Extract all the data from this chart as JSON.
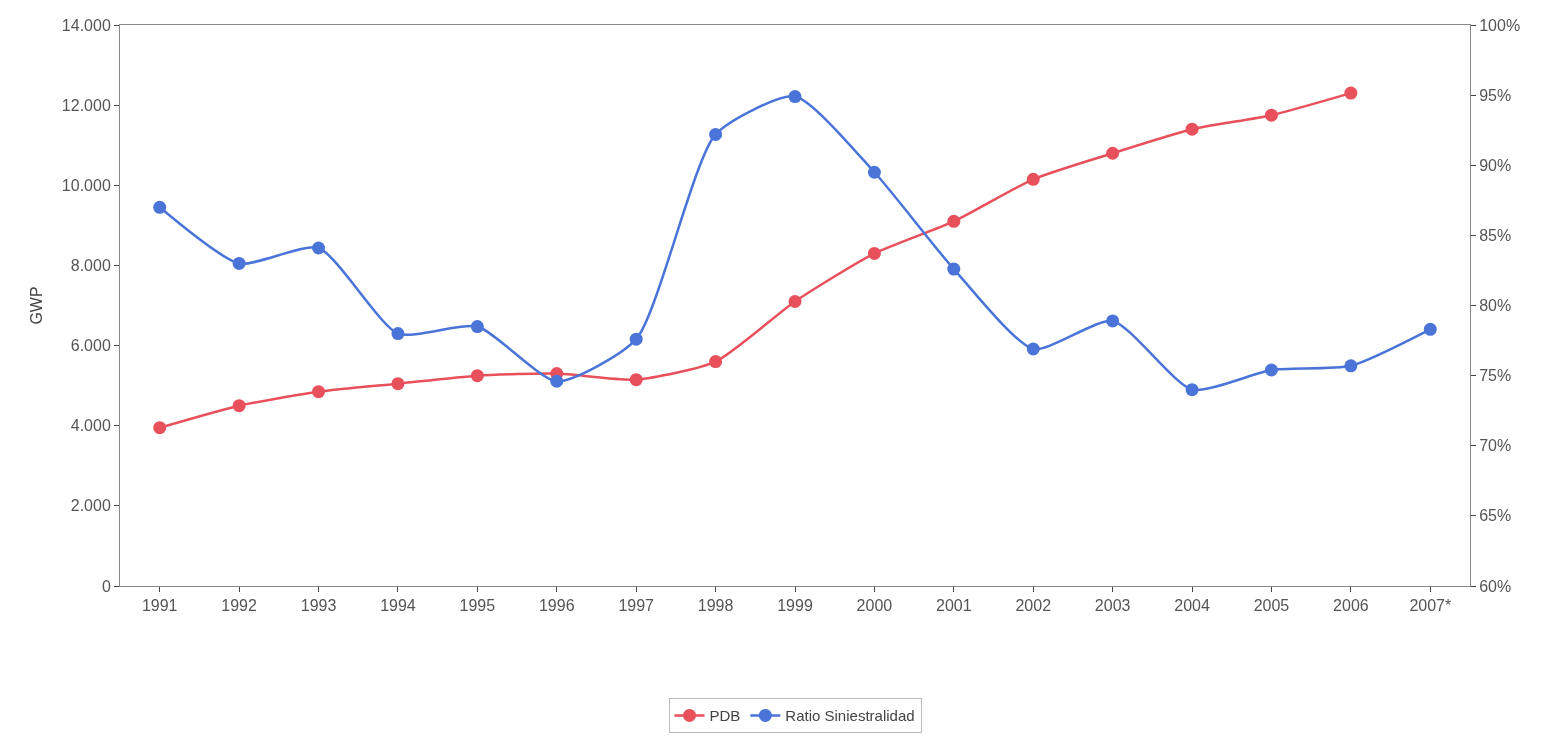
{
  "chart_data": {
    "type": "line",
    "ylabel": "GWP",
    "categories": [
      "1991",
      "1992",
      "1993",
      "1994",
      "1995",
      "1996",
      "1997",
      "1998",
      "1999",
      "2000",
      "2001",
      "2002",
      "2003",
      "2004",
      "2005",
      "2006",
      "2007*"
    ],
    "series": [
      {
        "name": "PDB",
        "color": "#e8505b",
        "values": [
          3950,
          4500,
          4850,
          5050,
          5250,
          5300,
          5150,
          5600,
          7100,
          8300,
          9100,
          10150,
          10800,
          11400,
          11750,
          12300,
          null
        ]
      },
      {
        "name": "Ratio Siniestralidad",
        "color": "#4a74d8",
        "axis": "y2",
        "values": [
          87,
          83,
          84.1,
          78,
          78.5,
          74.6,
          77.6,
          92.2,
          94.9,
          89.5,
          82.6,
          76.9,
          78.9,
          74,
          75.4,
          75.7,
          78.3
        ]
      }
    ],
    "ylim": [
      0,
      14000
    ],
    "yticks": [
      {
        "value": 0,
        "label": "0"
      },
      {
        "value": 2000,
        "label": "2.000"
      },
      {
        "value": 4000,
        "label": "4.000"
      },
      {
        "value": 6000,
        "label": "6.000"
      },
      {
        "value": 8000,
        "label": "8.000"
      },
      {
        "value": 10000,
        "label": "10.000"
      },
      {
        "value": 12000,
        "label": "12.000"
      },
      {
        "value": 14000,
        "label": "14.000"
      }
    ],
    "y2lim": [
      60,
      100
    ],
    "y2ticks": [
      {
        "value": 60,
        "label": "60%"
      },
      {
        "value": 65,
        "label": "65%"
      },
      {
        "value": 70,
        "label": "70%"
      },
      {
        "value": 75,
        "label": "75%"
      },
      {
        "value": 80,
        "label": "80%"
      },
      {
        "value": 85,
        "label": "85%"
      },
      {
        "value": 90,
        "label": "90%"
      },
      {
        "value": 95,
        "label": "95%"
      },
      {
        "value": 100,
        "label": "100%"
      }
    ],
    "marker": "circle",
    "line_style": "solid",
    "grid": false,
    "legend": "bottom"
  }
}
